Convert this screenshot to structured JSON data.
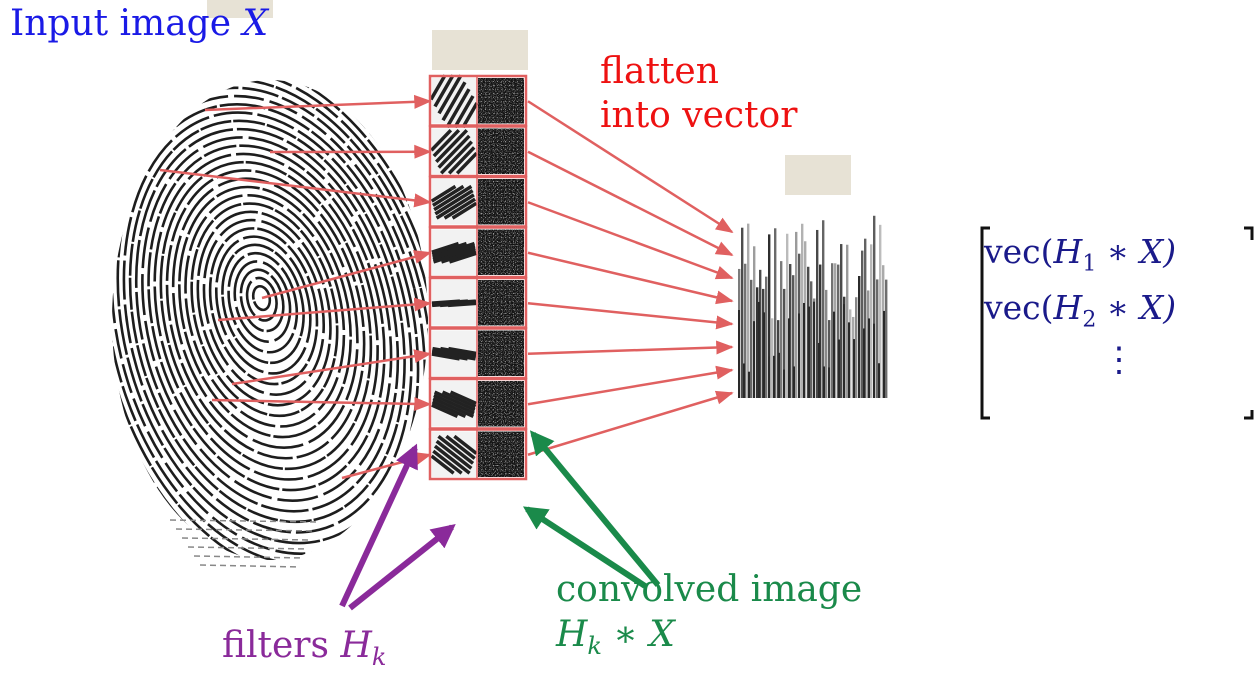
{
  "labels": {
    "input": {
      "text": "Input image",
      "symbol": "X"
    },
    "flatten": {
      "line1": "flatten",
      "line2": "into vector"
    },
    "filters": {
      "text": "filters",
      "symbol": "H",
      "subscript": "k"
    },
    "convolved": {
      "line1": "convolved image",
      "expr_H": "H",
      "expr_sub": "k",
      "expr_rest": " ∗ X"
    }
  },
  "vector": {
    "rows": [
      {
        "prefix": "vec(",
        "H": "H",
        "sub": "1",
        "rest": " ∗ X)"
      },
      {
        "prefix": "vec(",
        "H": "H",
        "sub": "2",
        "rest": " ∗ X)"
      }
    ],
    "ellipsis": "⋮"
  },
  "colors": {
    "input_label": "#1a1ae6",
    "flatten_label": "#ee1111",
    "filters_label": "#8a2a9a",
    "convolved_label": "#1a8a4a",
    "vector_text": "#1a1a8a",
    "arrow_red": "#e06060",
    "placeholder_box": "#e7e2d5"
  },
  "filter_count": 8
}
